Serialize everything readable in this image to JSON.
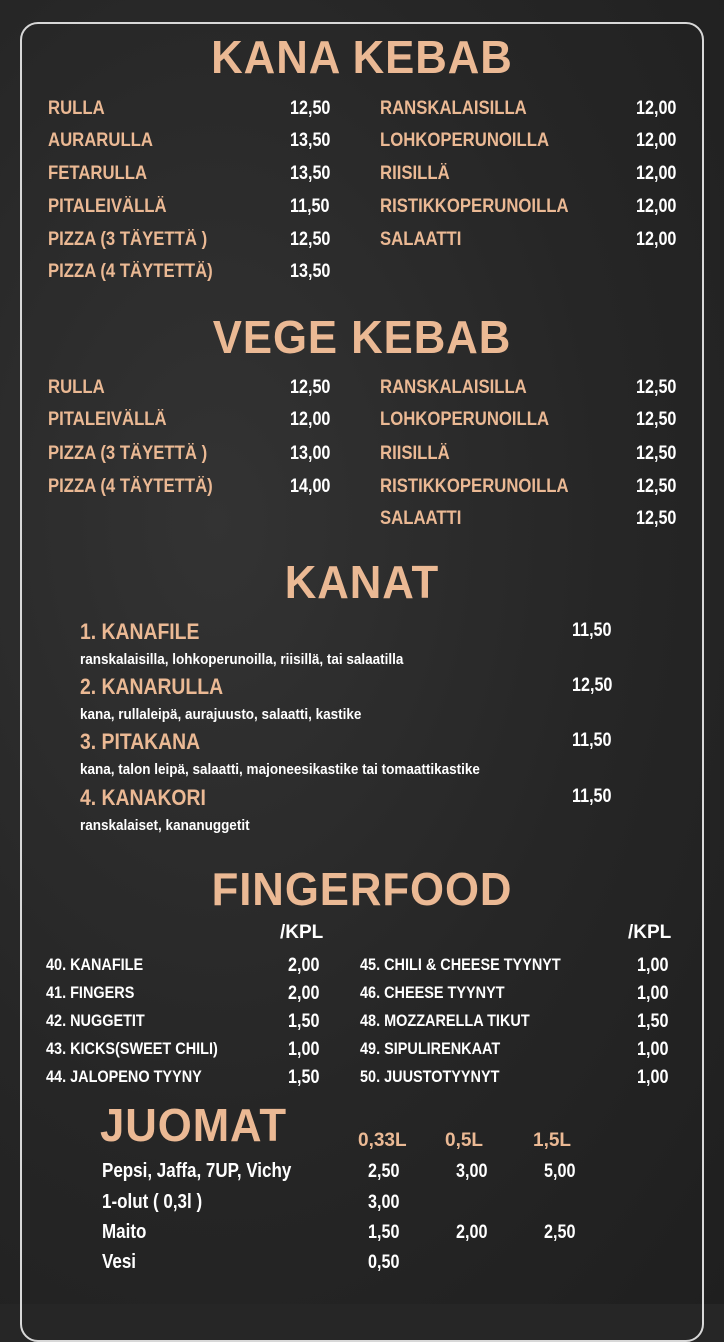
{
  "colors": {
    "accent": "#ebb994",
    "background": "#262626",
    "text": "#ffffff"
  },
  "kana_kebab": {
    "title": "KANA KEBAB",
    "left": [
      {
        "name": "RULLA",
        "price": "12,50"
      },
      {
        "name": "AURARULLA",
        "price": "13,50"
      },
      {
        "name": "FETARULLA",
        "price": "13,50"
      },
      {
        "name": "PITALEIVÄLLÄ",
        "price": "11,50"
      },
      {
        "name": "PIZZA (3 TÄYETTÄ )",
        "price": "12,50"
      },
      {
        "name": "PIZZA (4 TÄYTETTÄ)",
        "price": "13,50"
      }
    ],
    "right": [
      {
        "name": "RANSKALAISILLA",
        "price": "12,00"
      },
      {
        "name": "LOHKOPERUNOILLA",
        "price": "12,00"
      },
      {
        "name": "RIISILLÄ",
        "price": "12,00"
      },
      {
        "name": "RISTIKKOPERUNOILLA",
        "price": "12,00"
      },
      {
        "name": "SALAATTI",
        "price": "12,00"
      }
    ]
  },
  "vege_kebab": {
    "title": "VEGE KEBAB",
    "left": [
      {
        "name": "RULLA",
        "price": "12,50"
      },
      {
        "name": "PITALEIVÄLLÄ",
        "price": "12,00"
      },
      {
        "name": "PIZZA (3 TÄYETTÄ )",
        "price": "13,00"
      },
      {
        "name": "PIZZA (4 TÄYTETTÄ)",
        "price": "14,00"
      }
    ],
    "right": [
      {
        "name": "RANSKALAISILLA",
        "price": "12,50"
      },
      {
        "name": "LOHKOPERUNOILLA",
        "price": "12,50"
      },
      {
        "name": "RIISILLÄ",
        "price": "12,50"
      },
      {
        "name": "RISTIKKOPERUNOILLA",
        "price": "12,50"
      },
      {
        "name": "SALAATTI",
        "price": "12,50"
      }
    ]
  },
  "kanat": {
    "title": "KANAT",
    "items": [
      {
        "name": "1. KANAFILE",
        "price": "11,50",
        "desc": "ranskalaisilla, lohkoperunoilla, riisillä, tai salaatilla"
      },
      {
        "name": "2. KANARULLA",
        "price": "12,50",
        "desc": "kana, rullaleipä, aurajuusto, salaatti, kastike"
      },
      {
        "name": "3. PITAKANA",
        "price": "11,50",
        "desc": "kana, talon leipä, salaatti, majoneesikastike tai tomaattikastike"
      },
      {
        "name": "4. KANAKORI",
        "price": "11,50",
        "desc": "ranskalaiset, kananuggetit"
      }
    ]
  },
  "fingerfood": {
    "title": "FINGERFOOD",
    "unit_left": "/KPL",
    "unit_right": "/KPL",
    "left": [
      {
        "name": "40. KANAFILE",
        "price": "2,00"
      },
      {
        "name": "41. FINGERS",
        "price": "2,00"
      },
      {
        "name": "42. NUGGETIT",
        "price": "1,50"
      },
      {
        "name": "43. KICKS(SWEET CHILI)",
        "price": "1,00"
      },
      {
        "name": "44. JALOPENO TYYNY",
        "price": "1,50"
      }
    ],
    "right": [
      {
        "name": "45. CHILI & CHEESE TYYNYT",
        "price": "1,00"
      },
      {
        "name": "46. CHEESE TYYNYT",
        "price": "1,00"
      },
      {
        "name": "48. MOZZARELLA TIKUT",
        "price": "1,50"
      },
      {
        "name": "49. SIPULIRENKAAT",
        "price": "1,00"
      },
      {
        "name": "50. JUUSTOTYYNYT",
        "price": "1,00"
      }
    ]
  },
  "juomat": {
    "title": "JUOMAT",
    "sizes": [
      "0,33L",
      "0,5L",
      "1,5L"
    ],
    "rows": [
      {
        "name": "Pepsi, Jaffa, 7UP, Vichy",
        "prices": [
          "2,50",
          "3,00",
          "5,00"
        ]
      },
      {
        "name": "1-olut ( 0,3l )",
        "prices": [
          "3,00"
        ]
      },
      {
        "name": "Maito",
        "prices": [
          "1,50",
          "2,00",
          "2,50"
        ]
      },
      {
        "name": "Vesi",
        "prices": [
          "0,50"
        ]
      }
    ]
  }
}
